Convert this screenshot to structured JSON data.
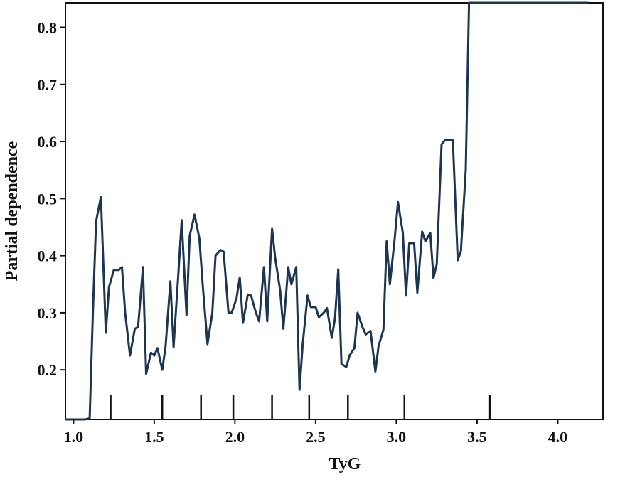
{
  "chart_data": {
    "type": "line",
    "title": "",
    "xlabel": "TyG",
    "ylabel": "Partial dependence",
    "xlim": [
      0.95,
      4.28
    ],
    "ylim": [
      0.113,
      0.843
    ],
    "x_ticks": [
      1.0,
      1.5,
      2.0,
      2.5,
      3.0,
      3.5,
      4.0
    ],
    "x_tick_labels": [
      "1.0",
      "1.5",
      "2.0",
      "2.5",
      "3.0",
      "3.5",
      "4.0"
    ],
    "y_ticks": [
      0.2,
      0.3,
      0.4,
      0.5,
      0.6,
      0.7,
      0.8
    ],
    "y_tick_labels": [
      "0.2",
      "0.3",
      "0.4",
      "0.5",
      "0.6",
      "0.7",
      "0.8"
    ],
    "rug_x": [
      1.23,
      1.55,
      1.79,
      1.99,
      2.23,
      2.46,
      2.7,
      3.05,
      3.58
    ],
    "grid": false,
    "line_color": "#1c3550",
    "series": [
      {
        "x": [
          0.95,
          1.07,
          1.1,
          1.12,
          1.14,
          1.17,
          1.2,
          1.22,
          1.25,
          1.28,
          1.3,
          1.32,
          1.35,
          1.38,
          1.4,
          1.43,
          1.45,
          1.48,
          1.5,
          1.52,
          1.55,
          1.57,
          1.6,
          1.62,
          1.65,
          1.67,
          1.7,
          1.72,
          1.75,
          1.78,
          1.8,
          1.83,
          1.86,
          1.88,
          1.91,
          1.93,
          1.96,
          1.98,
          2.01,
          2.03,
          2.05,
          2.08,
          2.1,
          2.13,
          2.15,
          2.18,
          2.2,
          2.23,
          2.25,
          2.28,
          2.3,
          2.33,
          2.35,
          2.38,
          2.4,
          2.42,
          2.45,
          2.47,
          2.5,
          2.52,
          2.55,
          2.57,
          2.6,
          2.62,
          2.64,
          2.66,
          2.69,
          2.71,
          2.74,
          2.76,
          2.79,
          2.81,
          2.84,
          2.87,
          2.89,
          2.92,
          2.94,
          2.96,
          2.99,
          3.01,
          3.04,
          3.06,
          3.08,
          3.11,
          3.13,
          3.16,
          3.18,
          3.21,
          3.23,
          3.25,
          3.28,
          3.3,
          3.33,
          3.35,
          3.38,
          3.4,
          3.43,
          3.45,
          3.48,
          3.5,
          3.52,
          3.55,
          3.57,
          3.6,
          3.62,
          3.65,
          3.67,
          3.7,
          3.72,
          3.75,
          3.77,
          3.79,
          3.82,
          3.84,
          3.87,
          3.89,
          3.91,
          3.94,
          3.96,
          3.99,
          4.01,
          4.04,
          4.06,
          4.09,
          4.11,
          4.14,
          4.16,
          4.19
        ],
        "y": [
          0.113,
          0.113,
          0.115,
          0.3,
          0.46,
          0.503,
          0.265,
          0.345,
          0.375,
          0.375,
          0.38,
          0.3,
          0.225,
          0.272,
          0.275,
          0.38,
          0.193,
          0.23,
          0.225,
          0.238,
          0.2,
          0.24,
          0.355,
          0.24,
          0.37,
          0.462,
          0.296,
          0.435,
          0.472,
          0.43,
          0.35,
          0.245,
          0.3,
          0.4,
          0.41,
          0.407,
          0.3,
          0.3,
          0.325,
          0.362,
          0.282,
          0.332,
          0.33,
          0.3,
          0.285,
          0.38,
          0.285,
          0.447,
          0.395,
          0.34,
          0.272,
          0.38,
          0.35,
          0.38,
          0.165,
          0.245,
          0.33,
          0.31,
          0.31,
          0.292,
          0.3,
          0.308,
          0.256,
          0.29,
          0.376,
          0.21,
          0.205,
          0.225,
          0.238,
          0.3,
          0.275,
          0.262,
          0.268,
          0.197,
          0.242,
          0.27,
          0.425,
          0.35,
          0.43,
          0.494,
          0.44,
          0.33,
          0.422,
          0.422,
          0.335,
          0.442,
          0.425,
          0.44,
          0.361,
          0.385,
          0.595,
          0.602,
          0.602,
          0.602,
          0.392,
          0.408,
          0.55,
          0.843,
          0.843,
          0.843,
          0.843,
          0.843,
          0.843,
          0.843,
          0.843,
          0.843,
          0.843,
          0.843,
          0.843,
          0.843,
          0.843,
          0.843,
          0.843,
          0.843,
          0.843,
          0.843,
          0.843,
          0.843,
          0.843,
          0.843,
          0.843,
          0.843,
          0.843,
          0.843,
          0.843,
          0.843,
          0.843,
          0.843
        ]
      }
    ]
  }
}
